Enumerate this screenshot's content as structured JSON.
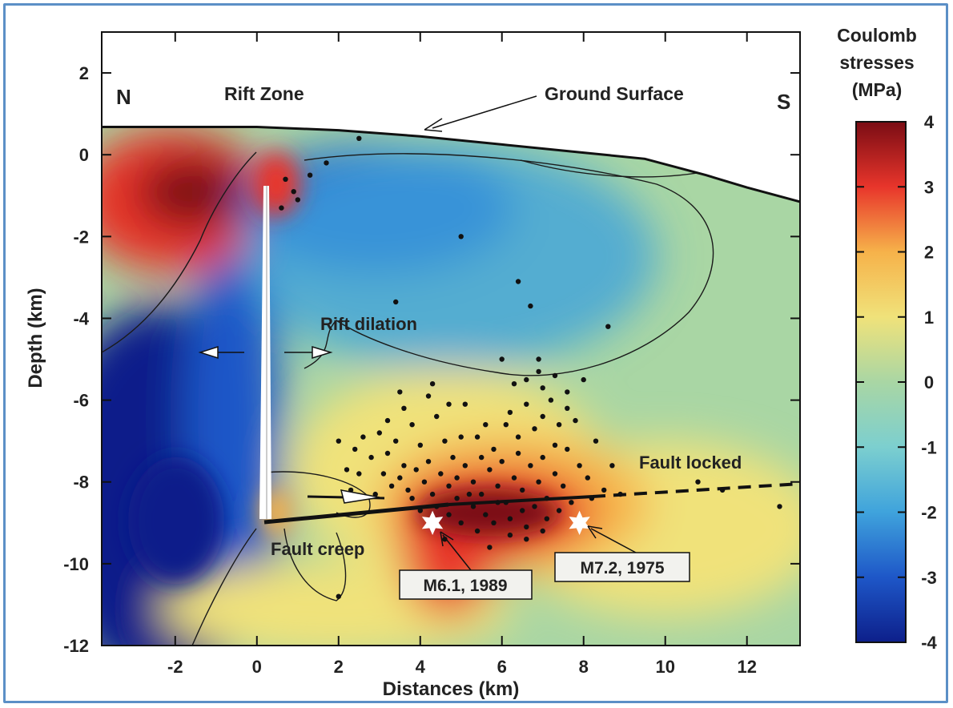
{
  "chart_data": {
    "type": "heatmap",
    "title": "",
    "xlabel": "Distances (km)",
    "ylabel": "Depth (km)",
    "xlim": [
      -3.8,
      13.3
    ],
    "ylim": [
      -12,
      3
    ],
    "x_ticks": [
      "-2",
      "0",
      "2",
      "4",
      "6",
      "8",
      "10",
      "12"
    ],
    "x_tick_values": [
      -2,
      0,
      2,
      4,
      6,
      8,
      10,
      12
    ],
    "y_ticks": [
      "2",
      "0",
      "-2",
      "-4",
      "-6",
      "-8",
      "-10",
      "-12"
    ],
    "y_tick_values": [
      2,
      0,
      -2,
      -4,
      -6,
      -8,
      -10,
      -12
    ],
    "colorbar": {
      "title_lines": [
        "Coulomb",
        "stresses",
        "(MPa)"
      ],
      "range": [
        -4,
        4
      ],
      "ticks": [
        "4",
        "3",
        "2",
        "1",
        "0",
        "-1",
        "-2",
        "-3",
        "-4"
      ],
      "tick_values": [
        4,
        3,
        2,
        1,
        0,
        -1,
        -2,
        -3,
        -4
      ],
      "colors": [
        "#0d1f8a",
        "#1e57c8",
        "#3fa3dc",
        "#7ccfcf",
        "#a9d6a4",
        "#f0e27a",
        "#f6b24a",
        "#e8352b",
        "#7a0c14"
      ]
    },
    "annotations": {
      "north": "N",
      "south": "S",
      "rift_zone": "Rift Zone",
      "ground_surface": "Ground Surface",
      "rift_dilation": "Rift dilation",
      "fault_locked": "Fault locked",
      "fault_creep": "Fault creep",
      "quake_1989": "M6.1, 1989",
      "quake_1975": "M7.2, 1975"
    },
    "mainshocks": [
      {
        "label": "M6.1, 1989",
        "x": 4.3,
        "y": -9.0
      },
      {
        "label": "M7.2, 1975",
        "x": 7.9,
        "y": -9.0
      }
    ],
    "surface_profile": [
      [
        -3.8,
        0.68
      ],
      [
        0,
        0.68
      ],
      [
        2,
        0.6
      ],
      [
        4,
        0.45
      ],
      [
        6,
        0.25
      ],
      [
        8,
        0.05
      ],
      [
        9.5,
        -0.1
      ],
      [
        11,
        -0.5
      ],
      [
        12,
        -0.8
      ],
      [
        13.3,
        -1.15
      ]
    ],
    "aftershocks": [
      [
        0.7,
        -0.6
      ],
      [
        0.9,
        -0.9
      ],
      [
        0.6,
        -1.3
      ],
      [
        1.0,
        -1.1
      ],
      [
        1.3,
        -0.5
      ],
      [
        1.7,
        -0.2
      ],
      [
        2.5,
        0.4
      ],
      [
        5.0,
        -2.0
      ],
      [
        6.4,
        -3.1
      ],
      [
        6.7,
        -3.7
      ],
      [
        3.4,
        -3.6
      ],
      [
        8.6,
        -4.2
      ],
      [
        6.0,
        -5.0
      ],
      [
        6.9,
        -5.0
      ],
      [
        2.0,
        -7.0
      ],
      [
        2.2,
        -7.7
      ],
      [
        2.4,
        -7.2
      ],
      [
        2.6,
        -6.9
      ],
      [
        2.8,
        -7.4
      ],
      [
        3.0,
        -6.8
      ],
      [
        3.2,
        -7.3
      ],
      [
        3.4,
        -7.0
      ],
      [
        3.6,
        -7.6
      ],
      [
        3.8,
        -6.6
      ],
      [
        4.0,
        -7.1
      ],
      [
        4.2,
        -7.5
      ],
      [
        4.4,
        -6.4
      ],
      [
        4.6,
        -7.0
      ],
      [
        4.8,
        -7.4
      ],
      [
        5.0,
        -6.9
      ],
      [
        3.1,
        -7.8
      ],
      [
        3.3,
        -8.1
      ],
      [
        3.5,
        -7.9
      ],
      [
        3.7,
        -8.2
      ],
      [
        3.9,
        -7.7
      ],
      [
        4.1,
        -8.0
      ],
      [
        4.3,
        -8.3
      ],
      [
        4.5,
        -7.8
      ],
      [
        4.7,
        -8.1
      ],
      [
        4.9,
        -8.4
      ],
      [
        5.1,
        -7.6
      ],
      [
        5.3,
        -8.0
      ],
      [
        5.5,
        -8.3
      ],
      [
        5.7,
        -7.7
      ],
      [
        5.9,
        -8.1
      ],
      [
        6.1,
        -8.5
      ],
      [
        6.3,
        -7.9
      ],
      [
        6.5,
        -8.2
      ],
      [
        6.7,
        -7.6
      ],
      [
        6.9,
        -8.0
      ],
      [
        7.1,
        -8.4
      ],
      [
        7.3,
        -7.8
      ],
      [
        7.5,
        -8.1
      ],
      [
        7.7,
        -8.5
      ],
      [
        6.2,
        -6.3
      ],
      [
        6.4,
        -6.9
      ],
      [
        6.6,
        -6.1
      ],
      [
        6.8,
        -6.7
      ],
      [
        7.0,
        -6.4
      ],
      [
        7.2,
        -6.0
      ],
      [
        7.4,
        -6.6
      ],
      [
        7.6,
        -6.2
      ],
      [
        6.3,
        -5.6
      ],
      [
        6.6,
        -5.5
      ],
      [
        7.0,
        -5.7
      ],
      [
        7.3,
        -5.4
      ],
      [
        7.6,
        -5.8
      ],
      [
        6.9,
        -5.3
      ],
      [
        7.8,
        -6.5
      ],
      [
        8.0,
        -5.5
      ],
      [
        5.3,
        -8.6
      ],
      [
        5.6,
        -8.8
      ],
      [
        5.9,
        -8.5
      ],
      [
        6.2,
        -8.9
      ],
      [
        6.5,
        -8.7
      ],
      [
        6.8,
        -8.6
      ],
      [
        7.1,
        -8.9
      ],
      [
        7.4,
        -8.7
      ],
      [
        5.0,
        -9.0
      ],
      [
        5.4,
        -9.2
      ],
      [
        5.8,
        -9.0
      ],
      [
        6.2,
        -9.3
      ],
      [
        6.6,
        -9.1
      ],
      [
        7.0,
        -9.2
      ],
      [
        4.7,
        -8.8
      ],
      [
        4.4,
        -8.6
      ],
      [
        8.3,
        -7.0
      ],
      [
        8.7,
        -7.6
      ],
      [
        8.9,
        -8.3
      ],
      [
        10.8,
        -8.0
      ],
      [
        11.4,
        -8.2
      ],
      [
        12.8,
        -8.6
      ],
      [
        8.2,
        -8.4
      ],
      [
        8.5,
        -8.2
      ],
      [
        4.3,
        -5.6
      ],
      [
        4.2,
        -5.9
      ],
      [
        3.5,
        -5.8
      ],
      [
        5.1,
        -6.1
      ],
      [
        5.6,
        -6.6
      ],
      [
        5.8,
        -7.2
      ],
      [
        4.9,
        -7.9
      ],
      [
        2.9,
        -8.3
      ],
      [
        2.5,
        -7.8
      ],
      [
        2.3,
        -8.2
      ],
      [
        3.8,
        -8.4
      ],
      [
        4.0,
        -8.7
      ],
      [
        5.2,
        -8.3
      ],
      [
        5.5,
        -7.4
      ],
      [
        6.0,
        -7.5
      ],
      [
        6.4,
        -7.3
      ],
      [
        7.6,
        -7.2
      ],
      [
        7.9,
        -7.6
      ],
      [
        7.3,
        -7.1
      ],
      [
        7.0,
        -7.4
      ],
      [
        8.1,
        -7.9
      ],
      [
        6.6,
        -9.4
      ],
      [
        5.7,
        -9.6
      ],
      [
        4.6,
        -9.4
      ],
      [
        2.0,
        -10.8
      ],
      [
        3.2,
        -6.5
      ],
      [
        3.6,
        -6.2
      ],
      [
        4.7,
        -6.1
      ],
      [
        5.4,
        -6.9
      ],
      [
        6.1,
        -6.6
      ]
    ],
    "grid": false
  }
}
